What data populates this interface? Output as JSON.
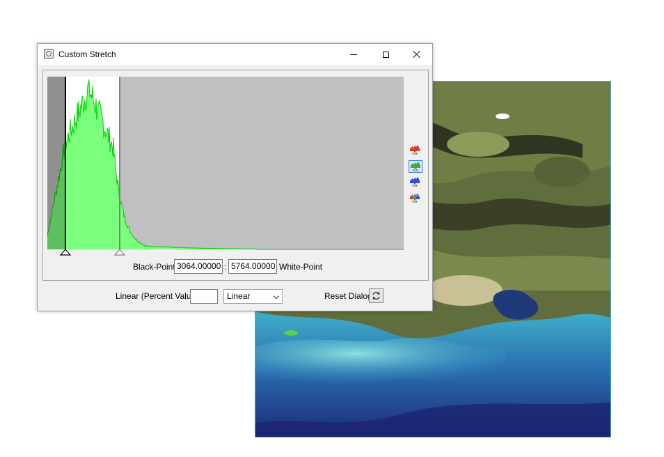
{
  "dialog": {
    "title": "Custom Stretch",
    "window_controls": [
      "minimize-icon",
      "maximize-icon",
      "close-icon"
    ]
  },
  "histogram": {
    "black_point_label": "Black-Point",
    "black_point_value": "3064.00000",
    "separator": ":",
    "white_point_value": "5764.00000",
    "white_point_label": "White-Point",
    "band_buttons": [
      {
        "name": "red-band-icon",
        "color": "#e03a2c",
        "active": false
      },
      {
        "name": "green-band-icon",
        "color": "#2fb24a",
        "active": true
      },
      {
        "name": "blue-band-icon",
        "color": "#3050d8",
        "active": false
      },
      {
        "name": "rgb-band-icon",
        "color": "#888888",
        "active": false
      }
    ],
    "fill_color": "#7cff7c",
    "line_color": "#00cc00"
  },
  "bottom_bar": {
    "linear_percent_label": "Linear (Percent Value)",
    "linear_percent_value": "",
    "stretch_type": "Linear",
    "reset_label": "Reset Dialog",
    "reset_icon": "refresh-icon"
  }
}
